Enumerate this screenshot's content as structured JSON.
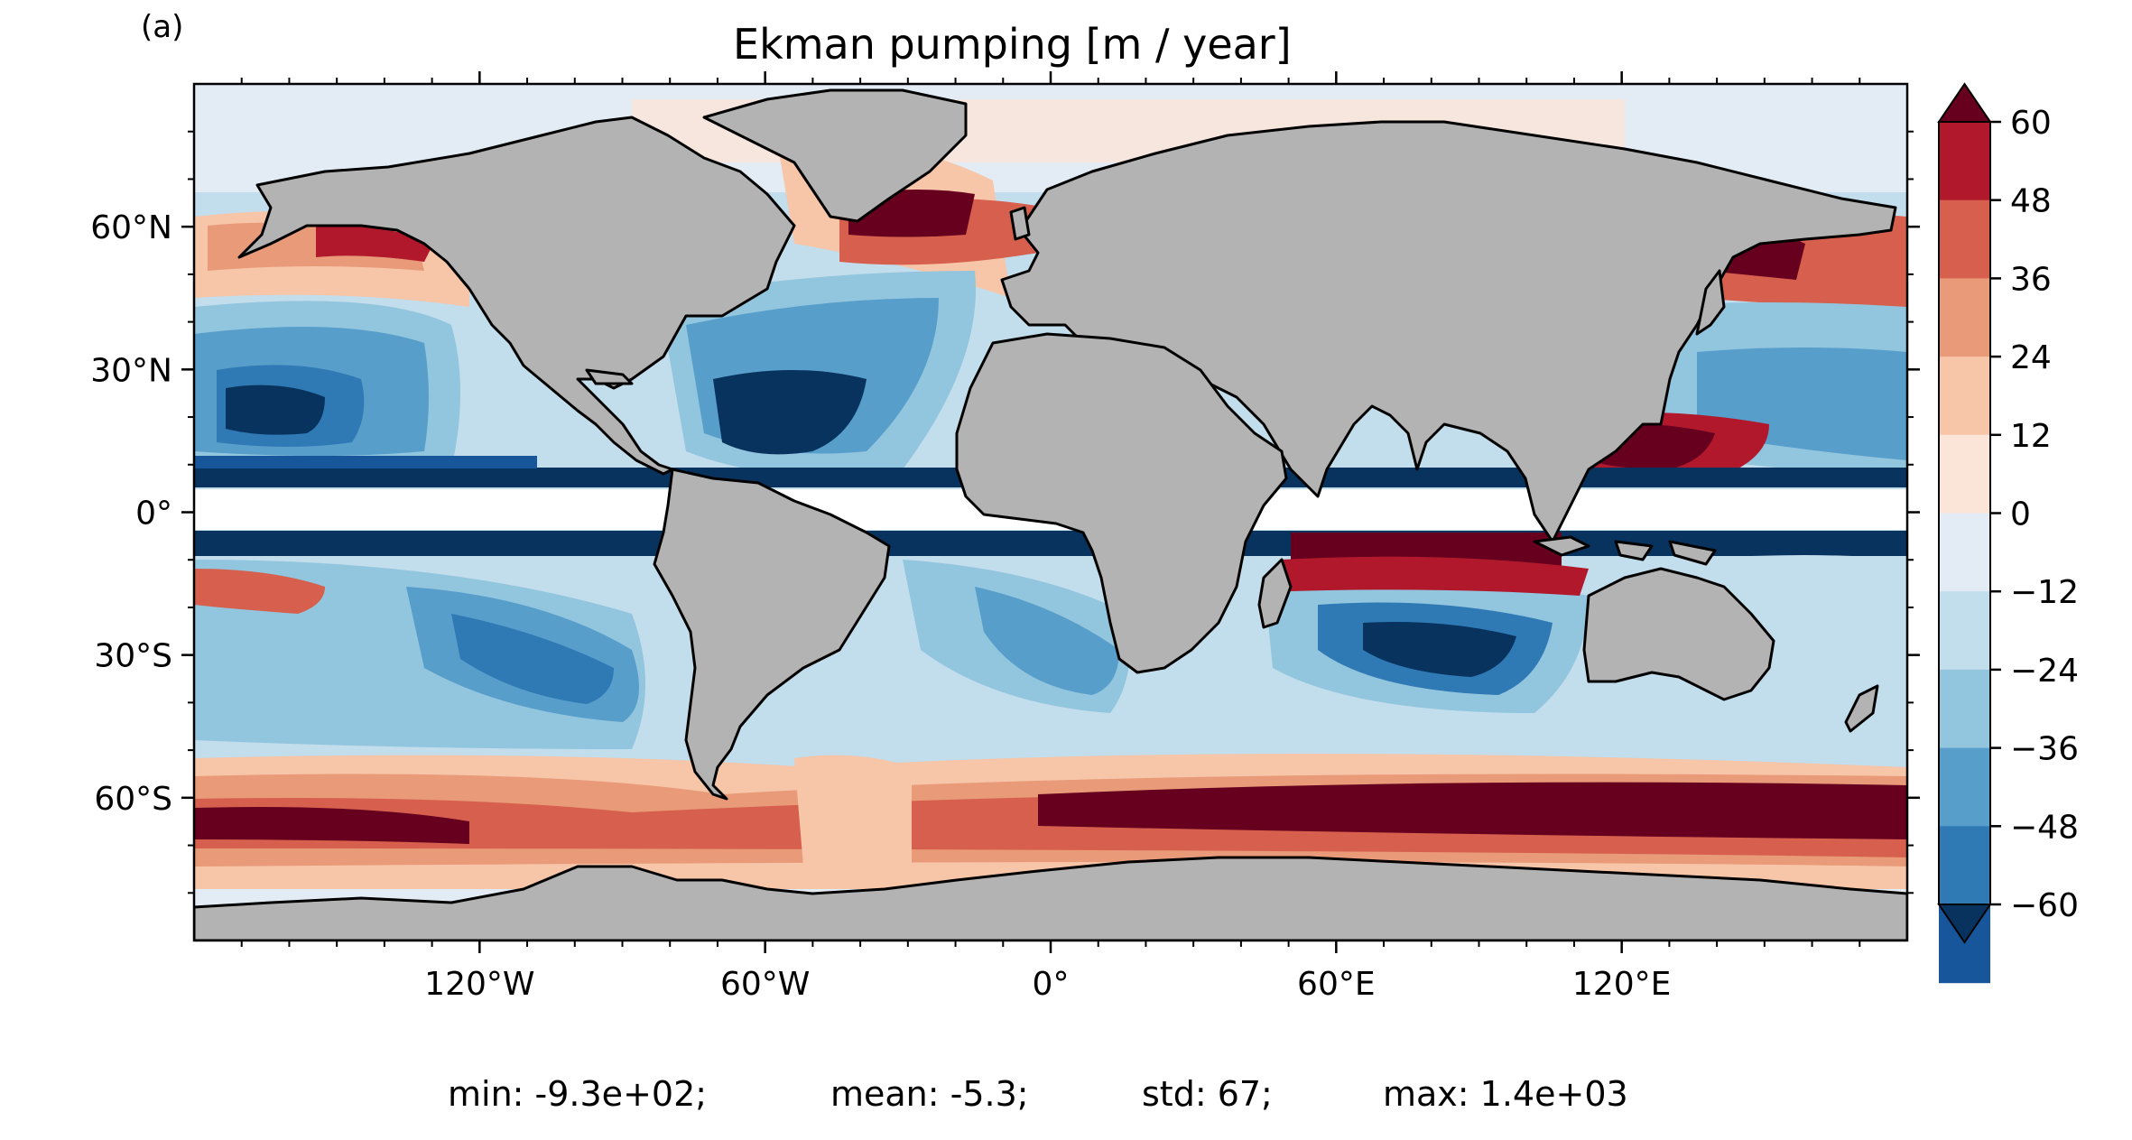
{
  "panel_label": "(a)",
  "title": "Ekman pumping [m / year]",
  "chart_data": {
    "type": "heatmap",
    "title": "Ekman pumping [m / year]",
    "projection": "PlateCarree",
    "xlim": [
      -180,
      180
    ],
    "ylim": [
      -90,
      90
    ],
    "x_ticks": [
      {
        "value": -120,
        "label": "120°W"
      },
      {
        "value": -60,
        "label": "60°W"
      },
      {
        "value": 0,
        "label": "0°"
      },
      {
        "value": 60,
        "label": "60°E"
      },
      {
        "value": 120,
        "label": "120°E"
      }
    ],
    "y_ticks": [
      {
        "value": 60,
        "label": "60°N"
      },
      {
        "value": 30,
        "label": "30°N"
      },
      {
        "value": 0,
        "label": "0°"
      },
      {
        "value": -30,
        "label": "30°S"
      },
      {
        "value": -60,
        "label": "60°S"
      }
    ],
    "colorbar": {
      "ticks": [
        60,
        48,
        36,
        24,
        12,
        0,
        -12,
        -24,
        -36,
        -48,
        -60
      ],
      "tick_labels": [
        "60",
        "48",
        "36",
        "24",
        "12",
        "0",
        "−12",
        "−24",
        "−36",
        "−48",
        "−60"
      ],
      "extend": "both",
      "colormap": "RdBu_r",
      "colors": [
        "#b1182b",
        "#d6604d",
        "#e89a79",
        "#f7c5a8",
        "#fbe5d8",
        "#e3ecf4",
        "#c2ddec",
        "#92c5de",
        "#579ecb",
        "#2f79b5",
        "#17569b"
      ],
      "over_color": "#67001f",
      "under_color": "#08335e"
    },
    "land_color": "#b3b3b3",
    "masked_equator_band": [
      -5,
      5
    ],
    "stats": {
      "min": "-9.3e+02",
      "mean": "-5.3",
      "std": "67",
      "max": "1.4e+03"
    }
  },
  "stats_text": {
    "min": "min: -9.3e+02;",
    "mean": "mean: -5.3;",
    "std": "std: 67;",
    "max": "max: 1.4e+03"
  }
}
